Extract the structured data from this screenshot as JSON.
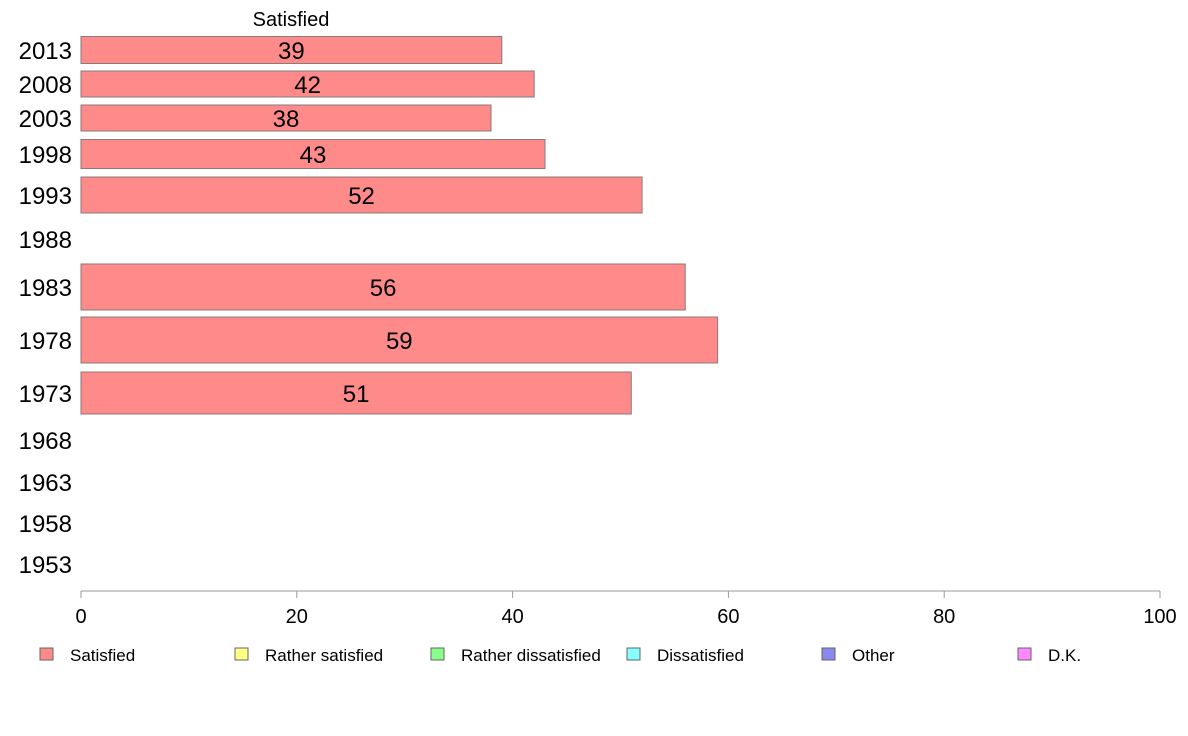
{
  "chart_data": {
    "type": "bar",
    "orientation": "horizontal",
    "stacked": true,
    "categories": [
      "2013",
      "2008",
      "2003",
      "1998",
      "1993",
      "1988",
      "1983",
      "1978",
      "1973",
      "1968",
      "1963",
      "1958",
      "1953"
    ],
    "series": [
      {
        "name": "Satisfied",
        "color": "#ff8a8a",
        "values": [
          39,
          42,
          38,
          43,
          52,
          null,
          56,
          59,
          51,
          null,
          null,
          null,
          null
        ]
      },
      {
        "name": "Rather satisfied",
        "color": "#ffff88",
        "values": [
          null,
          null,
          null,
          null,
          null,
          null,
          null,
          null,
          null,
          null,
          null,
          null,
          null
        ]
      },
      {
        "name": "Rather dissatisfied",
        "color": "#88ff88",
        "values": [
          null,
          null,
          null,
          null,
          null,
          null,
          null,
          null,
          null,
          null,
          null,
          null,
          null
        ]
      },
      {
        "name": "Dissatisfied",
        "color": "#88ffff",
        "values": [
          null,
          null,
          null,
          null,
          null,
          null,
          null,
          null,
          null,
          null,
          null,
          null,
          null
        ]
      },
      {
        "name": "Other",
        "color": "#8888ee",
        "values": [
          null,
          null,
          null,
          null,
          null,
          null,
          null,
          null,
          null,
          null,
          null,
          null,
          null
        ]
      },
      {
        "name": "D.K.",
        "color": "#ff88ff",
        "values": [
          null,
          null,
          null,
          null,
          null,
          null,
          null,
          null,
          null,
          null,
          null,
          null,
          null
        ]
      }
    ],
    "column_header": "Satisfied",
    "xlim": [
      0,
      100
    ],
    "xticks": [
      0,
      20,
      40,
      60,
      80,
      100
    ],
    "grid": false,
    "legend_position": "bottom"
  }
}
